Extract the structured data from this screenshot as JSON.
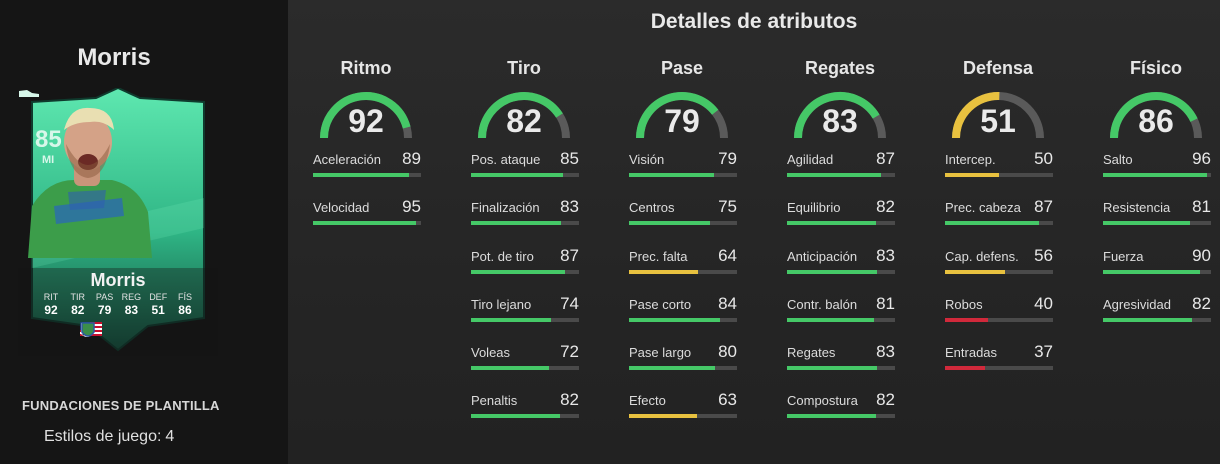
{
  "player": {
    "name": "Morris",
    "rating": "85",
    "position": "MI",
    "card_stats": [
      {
        "label": "RIT",
        "value": "92"
      },
      {
        "label": "TIR",
        "value": "82"
      },
      {
        "label": "PAS",
        "value": "79"
      },
      {
        "label": "REG",
        "value": "83"
      },
      {
        "label": "DEF",
        "value": "51"
      },
      {
        "label": "FÍS",
        "value": "86"
      }
    ],
    "badges": [
      "usa-flag-icon",
      "mls-league-icon",
      "seattle-sounders-crest-icon"
    ]
  },
  "promo": "FUNDACIONES DE PLANTILLA",
  "playstyles": {
    "label": "Estilos de juego:",
    "count": "4"
  },
  "section_title": "Detalles de atributos",
  "colors": {
    "green": "#45c867",
    "yellow": "#e8c13f",
    "red": "#d1293b",
    "track": "#4a4a4a"
  },
  "categories": [
    {
      "title": "Ritmo",
      "value": "92",
      "attrs": [
        {
          "name": "Aceleración",
          "value": "89"
        },
        {
          "name": "Velocidad",
          "value": "95"
        }
      ]
    },
    {
      "title": "Tiro",
      "value": "82",
      "attrs": [
        {
          "name": "Pos. ataque",
          "value": "85"
        },
        {
          "name": "Finalización",
          "value": "83"
        },
        {
          "name": "Pot. de tiro",
          "value": "87"
        },
        {
          "name": "Tiro lejano",
          "value": "74"
        },
        {
          "name": "Voleas",
          "value": "72"
        },
        {
          "name": "Penaltis",
          "value": "82"
        }
      ]
    },
    {
      "title": "Pase",
      "value": "79",
      "attrs": [
        {
          "name": "Visión",
          "value": "79"
        },
        {
          "name": "Centros",
          "value": "75"
        },
        {
          "name": "Prec. falta",
          "value": "64"
        },
        {
          "name": "Pase corto",
          "value": "84"
        },
        {
          "name": "Pase largo",
          "value": "80"
        },
        {
          "name": "Efecto",
          "value": "63"
        }
      ]
    },
    {
      "title": "Regates",
      "value": "83",
      "attrs": [
        {
          "name": "Agilidad",
          "value": "87"
        },
        {
          "name": "Equilibrio",
          "value": "82"
        },
        {
          "name": "Anticipación",
          "value": "83"
        },
        {
          "name": "Contr. balón",
          "value": "81"
        },
        {
          "name": "Regates",
          "value": "83"
        },
        {
          "name": "Compostura",
          "value": "82"
        }
      ]
    },
    {
      "title": "Defensa",
      "value": "51",
      "attrs": [
        {
          "name": "Intercep.",
          "value": "50"
        },
        {
          "name": "Prec. cabeza",
          "value": "87"
        },
        {
          "name": "Cap. defens.",
          "value": "56"
        },
        {
          "name": "Robos",
          "value": "40"
        },
        {
          "name": "Entradas",
          "value": "37"
        }
      ]
    },
    {
      "title": "Físico",
      "value": "86",
      "attrs": [
        {
          "name": "Salto",
          "value": "96"
        },
        {
          "name": "Resistencia",
          "value": "81"
        },
        {
          "name": "Fuerza",
          "value": "90"
        },
        {
          "name": "Agresividad",
          "value": "82"
        }
      ]
    }
  ]
}
